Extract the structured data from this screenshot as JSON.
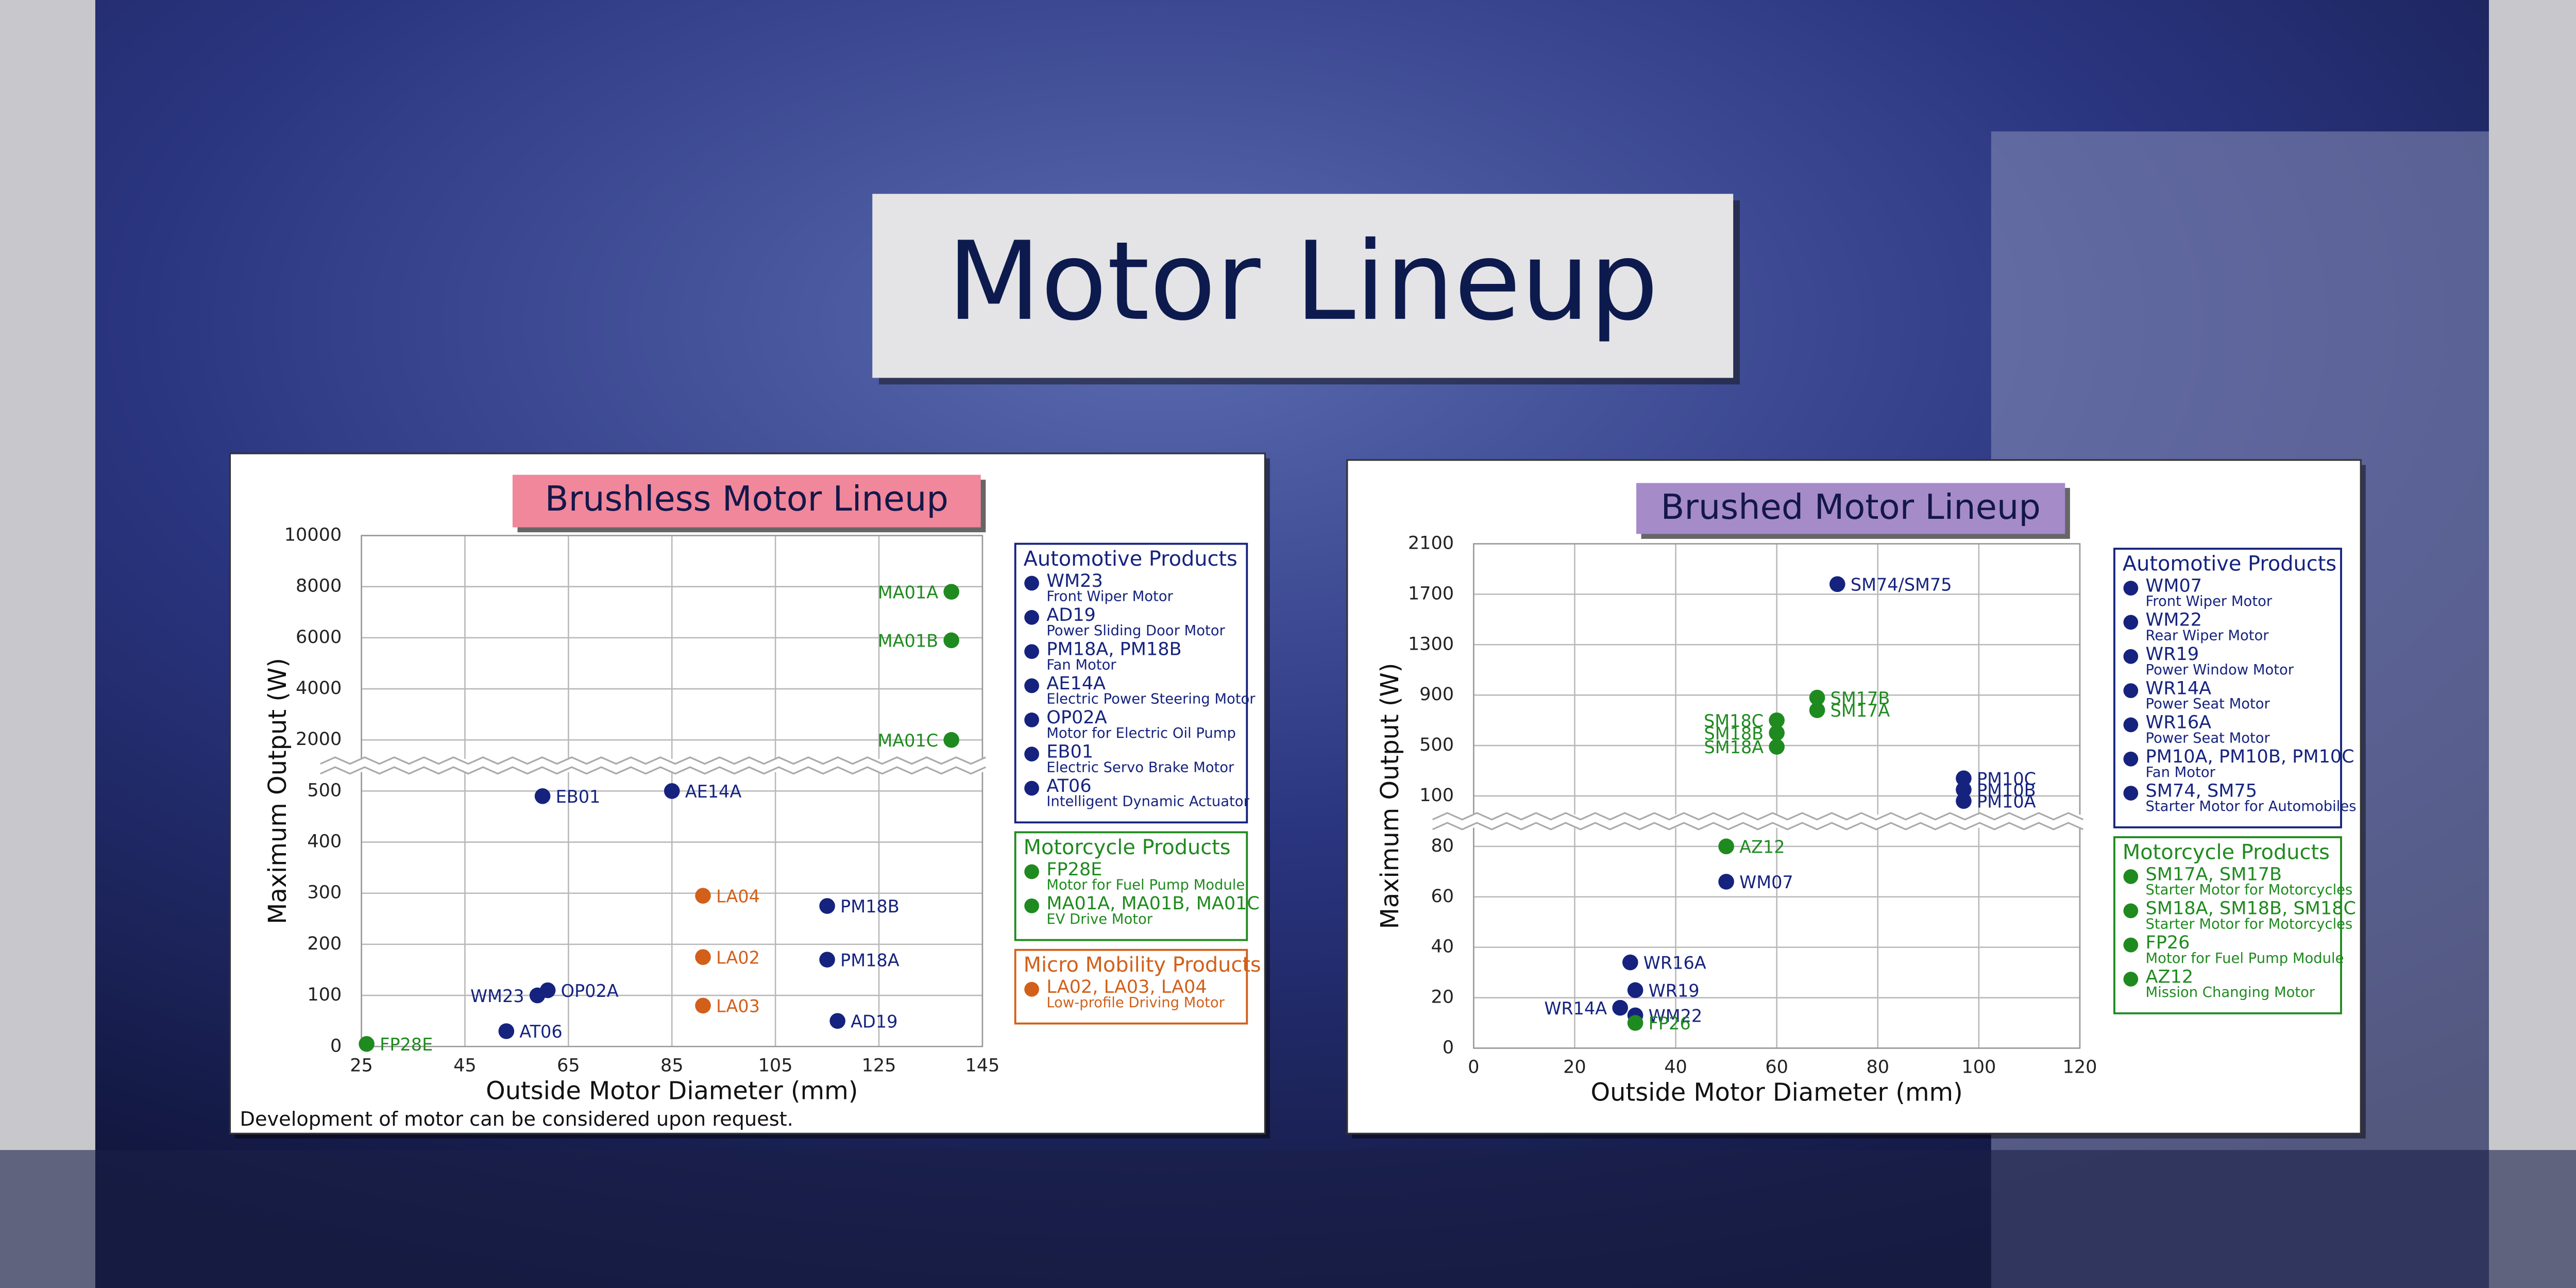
{
  "header": {
    "title": "Motor Lineup"
  },
  "chart_data": [
    {
      "type": "scatter",
      "title": "Brushless Motor Lineup",
      "xlabel": "Outside Motor Diameter (mm)",
      "ylabel": "Maximum Output (W)",
      "xlim": [
        25,
        145
      ],
      "xticks": [
        25,
        45,
        65,
        85,
        105,
        125,
        145
      ],
      "ylim": [
        0,
        10000
      ],
      "yticks": [
        0,
        100,
        200,
        300,
        400,
        500,
        2000,
        4000,
        6000,
        8000,
        10000
      ],
      "ybreak": [
        500,
        2000
      ],
      "grid": true,
      "title_color": "#f0879a",
      "note": "Development of motor can be considered upon request.",
      "series": [
        {
          "name": "Automotive Products",
          "color": "#15237e",
          "labels": [
            "EB01",
            "AE14A",
            "PM18B",
            "PM18A",
            "AD19",
            "WM23",
            "OP02A",
            "AT06"
          ],
          "x": [
            60,
            85,
            115,
            115,
            117,
            59,
            61,
            53
          ],
          "values": [
            490,
            500,
            275,
            170,
            50,
            100,
            110,
            30
          ],
          "items": [
            {
              "name": "WM23",
              "desc": "Front Wiper Motor"
            },
            {
              "name": "AD19",
              "desc": "Power Sliding Door Motor"
            },
            {
              "name": "PM18A, PM18B",
              "desc": "Fan Motor"
            },
            {
              "name": "AE14A",
              "desc": "Electric Power Steering Motor"
            },
            {
              "name": "OP02A",
              "desc": "Motor for Electric Oil Pump"
            },
            {
              "name": "EB01",
              "desc": "Electric Servo Brake Motor"
            },
            {
              "name": "AT06",
              "desc": "Intelligent Dynamic Actuator"
            }
          ]
        },
        {
          "name": "Motorcycle Products",
          "color": "#1f8a1f",
          "labels": [
            "MA01A",
            "MA01B",
            "MA01C",
            "FP28E"
          ],
          "x": [
            139,
            139,
            139,
            26
          ],
          "values": [
            7800,
            5900,
            2000,
            5
          ],
          "items": [
            {
              "name": "FP28E",
              "desc": "Motor for Fuel Pump Module"
            },
            {
              "name": "MA01A, MA01B, MA01C",
              "desc": "EV Drive Motor"
            }
          ]
        },
        {
          "name": "Micro Mobility Products",
          "color": "#d2601a",
          "labels": [
            "LA04",
            "LA02",
            "LA03"
          ],
          "x": [
            91,
            91,
            91
          ],
          "values": [
            295,
            175,
            80
          ],
          "items": [
            {
              "name": "LA02, LA03, LA04",
              "desc": "Low-profile Driving Motor"
            }
          ]
        }
      ]
    },
    {
      "type": "scatter",
      "title": "Brushed Motor Lineup",
      "xlabel": "Outside Motor Diameter (mm)",
      "ylabel": "Maximum Output (W)",
      "xlim": [
        0,
        120
      ],
      "xticks": [
        0,
        20,
        40,
        60,
        80,
        100,
        120
      ],
      "ylim": [
        0,
        2100
      ],
      "yticks": [
        0,
        20,
        40,
        60,
        80,
        100,
        500,
        900,
        1300,
        1700,
        2100
      ],
      "ybreak": [
        80,
        100
      ],
      "grid": true,
      "title_color": "#a68bc9",
      "series": [
        {
          "name": "Automotive Products",
          "color": "#15237e",
          "labels": [
            "SM74/SM75",
            "PM10C",
            "PM10B",
            "PM10A",
            "WM07",
            "WR16A",
            "WR19",
            "WR14A",
            "WM22"
          ],
          "x": [
            72,
            97,
            97,
            97,
            50,
            31,
            32,
            29,
            32
          ],
          "values": [
            1780,
            240,
            150,
            98,
            66,
            34,
            23,
            16,
            13
          ],
          "items": [
            {
              "name": "WM07",
              "desc": "Front Wiper Motor"
            },
            {
              "name": "WM22",
              "desc": "Rear Wiper Motor"
            },
            {
              "name": "WR19",
              "desc": "Power Window Motor"
            },
            {
              "name": "WR14A",
              "desc": "Power Seat Motor"
            },
            {
              "name": "WR16A",
              "desc": "Power Seat Motor"
            },
            {
              "name": "PM10A, PM10B, PM10C",
              "desc": "Fan Motor"
            },
            {
              "name": "SM74, SM75",
              "desc": "Starter Motor for Automobiles"
            }
          ]
        },
        {
          "name": "Motorcycle Products",
          "color": "#1f8a1f",
          "labels": [
            "SM17B",
            "SM17A",
            "SM18C",
            "SM18B",
            "SM18A",
            "AZ12",
            "FP26"
          ],
          "x": [
            68,
            68,
            60,
            60,
            60,
            50,
            32
          ],
          "values": [
            880,
            780,
            700,
            600,
            490,
            80,
            10
          ],
          "items": [
            {
              "name": "SM17A, SM17B",
              "desc": "Starter Motor for Motorcycles"
            },
            {
              "name": "SM18A, SM18B, SM18C",
              "desc": "Starter Motor for Motorcycles"
            },
            {
              "name": "FP26",
              "desc": "Motor for Fuel Pump Module"
            },
            {
              "name": "AZ12",
              "desc": "Mission Changing Motor"
            }
          ]
        }
      ]
    }
  ]
}
